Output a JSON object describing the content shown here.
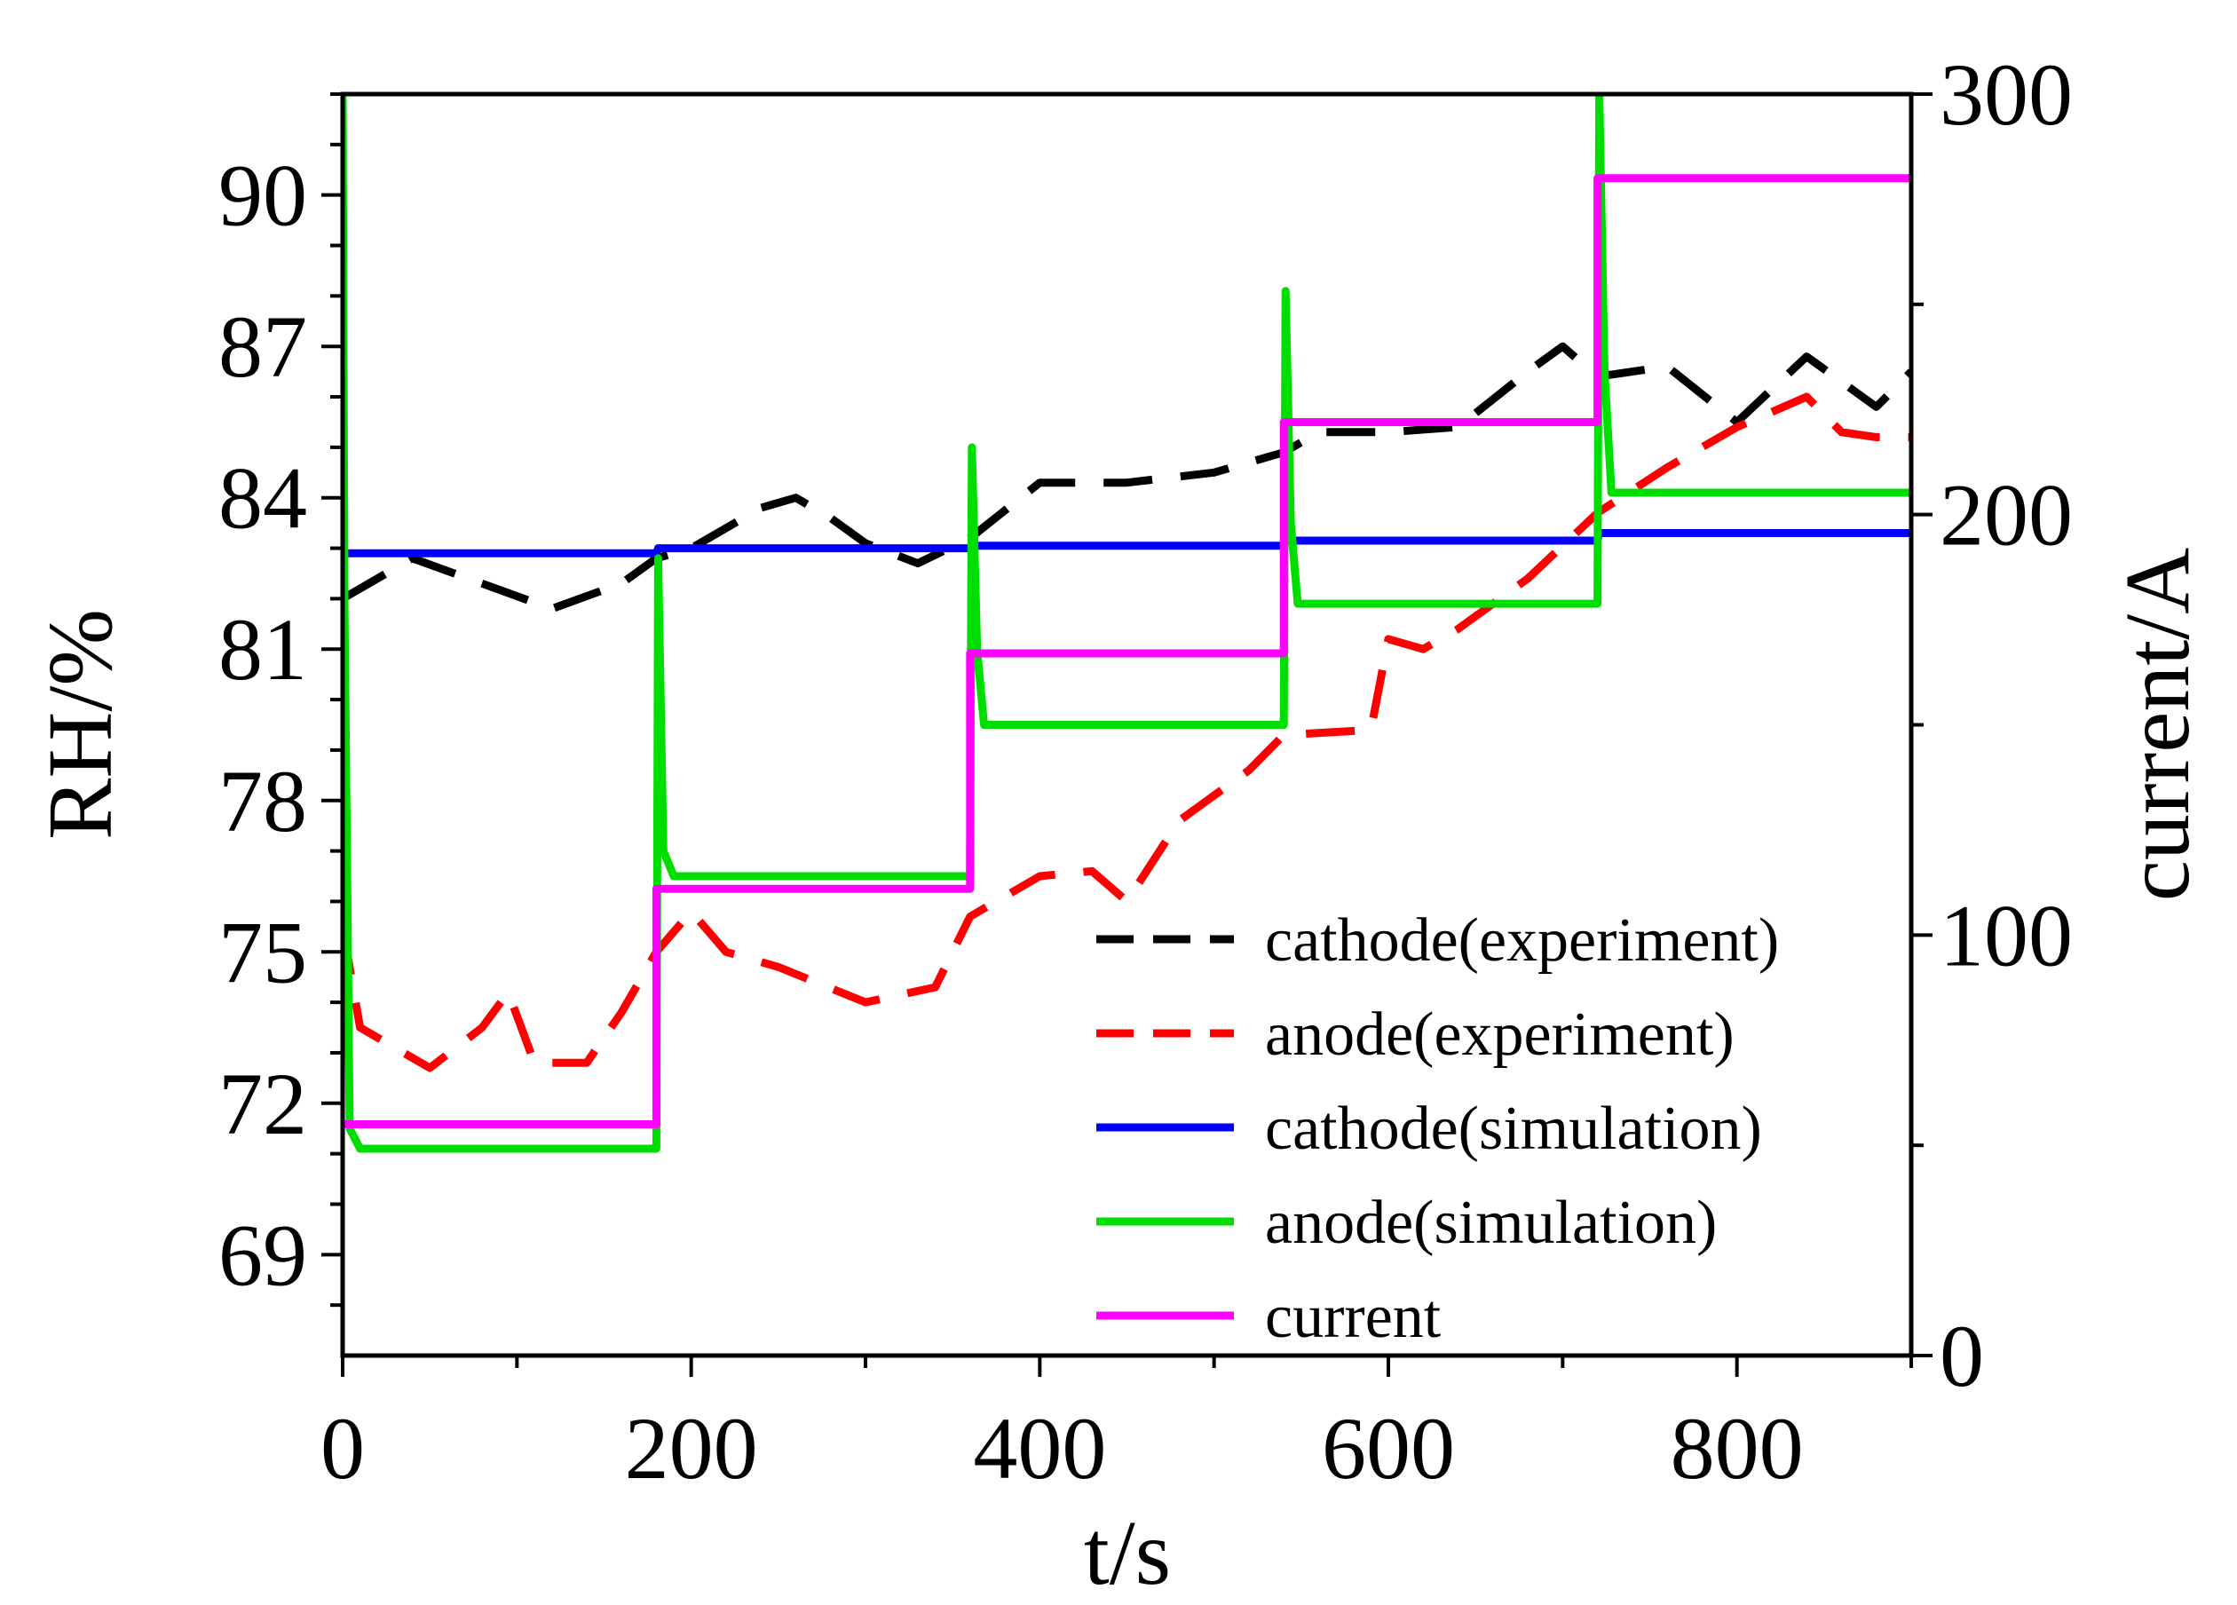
{
  "chart_data": {
    "type": "line",
    "title": "",
    "xlabel": "t/s",
    "ylabel": "RH/%",
    "y2label": "current/A",
    "xlim": [
      0,
      900
    ],
    "ylim": [
      67,
      92
    ],
    "y2lim": [
      0,
      300
    ],
    "xticks": [
      "0",
      "200",
      "400",
      "600",
      "800"
    ],
    "xtick_values": [
      0,
      200,
      400,
      600,
      800
    ],
    "yticks": [
      "69",
      "72",
      "75",
      "78",
      "81",
      "84",
      "87",
      "90"
    ],
    "ytick_values": [
      69,
      72,
      75,
      78,
      81,
      84,
      87,
      90
    ],
    "y2ticks": [
      "0",
      "100",
      "200",
      "300"
    ],
    "y2tick_values": [
      0,
      100,
      200,
      300
    ],
    "legend_position": "bottom-right",
    "series": [
      {
        "name": "cathode(experiment)",
        "axis": "left",
        "style": "dashed",
        "color": "#000000",
        "x": [
          0,
          40,
          80,
          120,
          160,
          180,
          200,
          240,
          260,
          280,
          300,
          330,
          360,
          400,
          450,
          500,
          540,
          560,
          600,
          640,
          680,
          700,
          720,
          760,
          800,
          840,
          880,
          900
        ],
        "y": [
          82.0,
          82.8,
          82.3,
          81.8,
          82.3,
          82.8,
          83.0,
          83.8,
          84.0,
          83.6,
          83.1,
          82.7,
          83.2,
          84.3,
          84.3,
          84.5,
          84.9,
          85.3,
          85.3,
          85.4,
          86.5,
          87.0,
          86.4,
          86.6,
          85.5,
          86.8,
          85.8,
          86.5
        ]
      },
      {
        "name": "anode(experiment)",
        "axis": "left",
        "style": "dashed",
        "color": "#ff0000",
        "x": [
          0,
          10,
          50,
          80,
          95,
          110,
          140,
          160,
          180,
          200,
          220,
          250,
          300,
          340,
          360,
          400,
          430,
          450,
          480,
          520,
          540,
          590,
          600,
          620,
          640,
          680,
          720,
          760,
          800,
          840,
          860,
          880,
          900
        ],
        "y": [
          75.5,
          73.5,
          72.7,
          73.5,
          74.2,
          72.8,
          72.8,
          73.8,
          75.0,
          75.8,
          75.0,
          74.7,
          74.0,
          74.3,
          75.7,
          76.5,
          76.6,
          76.0,
          77.6,
          78.6,
          79.3,
          79.4,
          81.2,
          81.0,
          81.4,
          82.4,
          83.7,
          84.6,
          85.4,
          86.0,
          85.3,
          85.2,
          85.2
        ]
      },
      {
        "name": "cathode(simulation)",
        "axis": "left",
        "style": "solid",
        "color": "#0000ff",
        "x": [
          0,
          180,
          181,
          360,
          361,
          540,
          541,
          720,
          721,
          900
        ],
        "y": [
          82.9,
          82.9,
          83.0,
          83.0,
          83.05,
          83.05,
          83.15,
          83.15,
          83.3,
          83.3
        ]
      },
      {
        "name": "anode(simulation)",
        "axis": "left",
        "style": "solid",
        "color": "#00dd00",
        "x": [
          0,
          1,
          4,
          10,
          180,
          181,
          184,
          190,
          360,
          361,
          364,
          368,
          540,
          541,
          544,
          548,
          720,
          721,
          724,
          728,
          900
        ],
        "y": [
          92.0,
          82.0,
          71.5,
          71.1,
          71.1,
          82.8,
          77.0,
          76.5,
          76.5,
          85.0,
          81.0,
          79.5,
          79.5,
          88.1,
          83.5,
          81.9,
          81.9,
          92.0,
          86.5,
          84.1,
          84.1
        ]
      },
      {
        "name": "current",
        "axis": "right",
        "style": "solid",
        "color": "#ff00ff",
        "x": [
          0,
          180,
          180,
          360,
          360,
          540,
          540,
          720,
          720,
          900
        ],
        "y": [
          55,
          55,
          111,
          111,
          167,
          167,
          222,
          222,
          280,
          280
        ]
      }
    ]
  }
}
